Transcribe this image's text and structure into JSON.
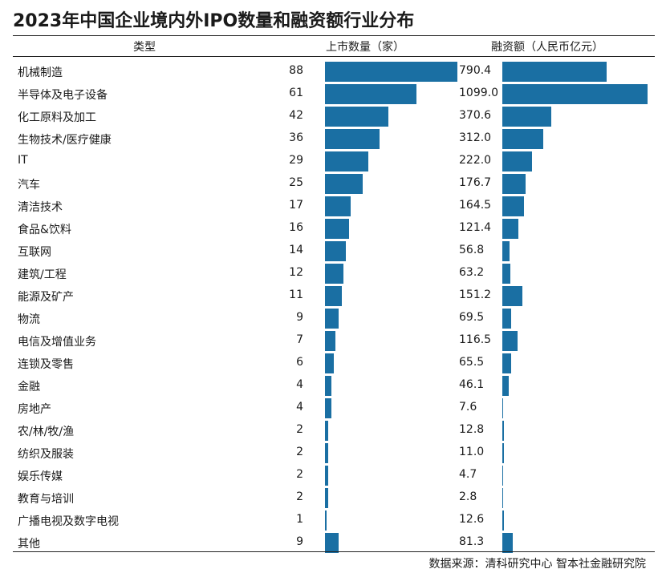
{
  "title": "2023年中国企业境内外IPO数量和融资额行业分布",
  "headers": {
    "type": "类型",
    "count": "上市数量（家）",
    "amount": "融资额（人民币亿元）"
  },
  "source": "数据来源：清科研究中心 智本社金融研究院",
  "colors": {
    "bar": "#1a6fa3"
  },
  "chart_data": {
    "type": "bar",
    "title": "2023年中国企业境内外IPO数量和融资额行业分布",
    "categories": [
      "机械制造",
      "半导体及电子设备",
      "化工原料及加工",
      "生物技术/医疗健康",
      "IT",
      "汽车",
      "清洁技术",
      "食品&饮料",
      "互联网",
      "建筑/工程",
      "能源及矿产",
      "物流",
      "电信及增值业务",
      "连锁及零售",
      "金融",
      "房地产",
      "农/林/牧/渔",
      "纺织及服装",
      "娱乐传媒",
      "教育与培训",
      "广播电视及数字电视",
      "其他"
    ],
    "series": [
      {
        "name": "上市数量（家）",
        "values": [
          88,
          61,
          42,
          36,
          29,
          25,
          17,
          16,
          14,
          12,
          11,
          9,
          7,
          6,
          4,
          4,
          2,
          2,
          2,
          2,
          1,
          9
        ]
      },
      {
        "name": "融资额（人民币亿元）",
        "values": [
          "790.4",
          "1099.0",
          "370.6",
          "312.0",
          "222.0",
          "176.7",
          "164.5",
          "121.4",
          "56.8",
          "63.2",
          "151.2",
          "69.5",
          "116.5",
          "65.5",
          "46.1",
          "7.6",
          "12.8",
          "11.0",
          "4.7",
          "2.8",
          "12.6",
          "81.3"
        ]
      }
    ],
    "grid": false,
    "legend": "none"
  }
}
